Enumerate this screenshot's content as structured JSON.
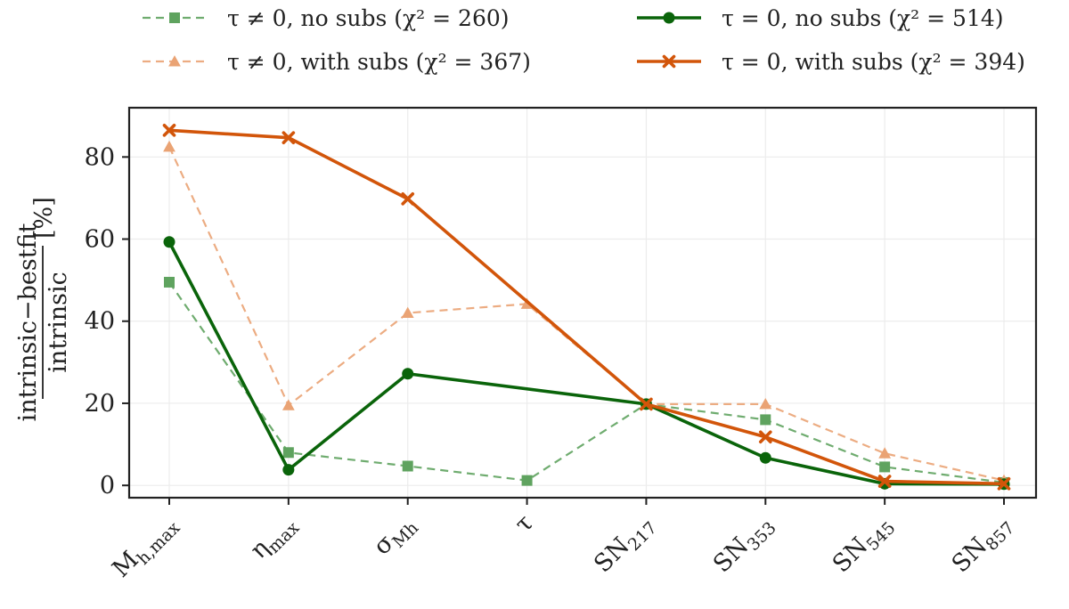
{
  "chart_data": {
    "type": "line",
    "title": "",
    "xlabel": "",
    "ylabel": {
      "numerator": "intrinsic−bestfit",
      "denominator": "intrinsic",
      "unit": "[%]"
    },
    "ylim": [
      -3,
      92
    ],
    "yticks": [
      0,
      20,
      40,
      60,
      80
    ],
    "grid": true,
    "legend_position": "top (above plot, two columns)",
    "categories": [
      {
        "main": "M",
        "sub": "h,max"
      },
      {
        "main": "η",
        "sub": "max"
      },
      {
        "main": "σ",
        "sub": "Mh"
      },
      {
        "main": "τ",
        "sub": ""
      },
      {
        "main": "SN",
        "sub": "217"
      },
      {
        "main": "SN",
        "sub": "353"
      },
      {
        "main": "SN",
        "sub": "545"
      },
      {
        "main": "SN",
        "sub": "857"
      }
    ],
    "series": [
      {
        "name": "τ ≠ 0, no subs (χ² = 260)",
        "color": "#5fa35f",
        "style": "dashed",
        "marker": "square",
        "values": [
          49.5,
          8,
          4.7,
          1.2,
          19.8,
          16,
          4.5,
          0.7
        ]
      },
      {
        "name": "τ ≠ 0, with subs (χ² = 367)",
        "color": "#eaa374",
        "style": "dashed",
        "marker": "triangle",
        "values": [
          82.5,
          19.5,
          42,
          44.2,
          19.8,
          19.8,
          7.8,
          1.2
        ]
      },
      {
        "name": "τ = 0, no subs (χ² = 514)",
        "color": "#0a640a",
        "style": "solid",
        "marker": "circle",
        "values": [
          59.3,
          3.8,
          27.2,
          null,
          19.8,
          6.7,
          0.4,
          0.3
        ]
      },
      {
        "name": "τ = 0, with subs (χ² = 394)",
        "color": "#d2550a",
        "style": "solid",
        "marker": "x",
        "values": [
          86.5,
          84.7,
          69.8,
          null,
          19.8,
          11.8,
          1.0,
          0.4
        ]
      }
    ]
  }
}
